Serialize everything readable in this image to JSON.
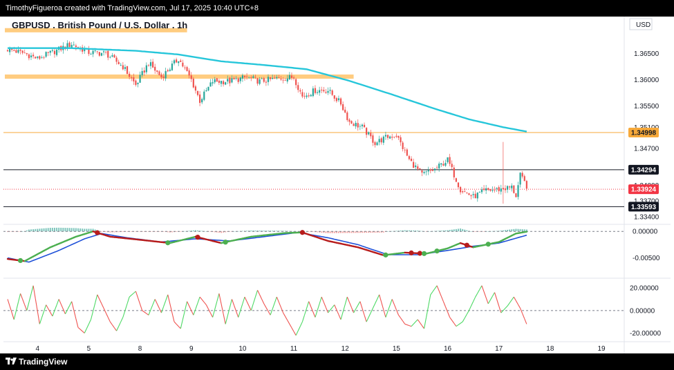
{
  "header": {
    "credit": "TimothyFigueroa created with TradingView.com, Jul 17, 2025 10:40 UTC+8"
  },
  "footer": {
    "brand": "TradingView"
  },
  "symbol": {
    "title": "GBPUSD . British Pound / U.S. Dollar . 1h"
  },
  "currency": "USD",
  "colors": {
    "up": "#26a69a",
    "down": "#ef5350",
    "ema": "#26c6da",
    "orange_line": "#f7a93a",
    "orange_zone": "#ffcc80",
    "sig_green": "#4caf50",
    "sig_red": "#b71c1c",
    "sig_blue": "#1e50d8",
    "rsi_up": "#4cd964",
    "rsi_down": "#ef5350",
    "last_price": "#f23645"
  },
  "chart_data": [
    {
      "type": "candlestick",
      "panel": "price",
      "ylim": [
        1.3327,
        1.3678
      ],
      "y_ticks": [
        "1.36500",
        "1.36000",
        "1.35500",
        "1.35100",
        "1.34700",
        "1.34300",
        "1.34000",
        "1.33700",
        "1.33400"
      ],
      "x_ticks": [
        "4",
        "5",
        "8",
        "9",
        "10",
        "11",
        "12",
        "15",
        "16",
        "17",
        "18",
        "19"
      ],
      "x_tick_index": [
        14,
        38,
        62,
        86,
        110,
        134,
        158,
        182,
        206,
        230,
        254,
        278
      ],
      "candles_count": 244,
      "close_anchors": [
        [
          0,
          1.3658
        ],
        [
          8,
          1.365
        ],
        [
          14,
          1.364
        ],
        [
          22,
          1.3654
        ],
        [
          30,
          1.3668
        ],
        [
          38,
          1.3652
        ],
        [
          46,
          1.365
        ],
        [
          54,
          1.3625
        ],
        [
          60,
          1.359
        ],
        [
          66,
          1.3632
        ],
        [
          72,
          1.3605
        ],
        [
          80,
          1.364
        ],
        [
          86,
          1.36
        ],
        [
          90,
          1.356
        ],
        [
          96,
          1.3597
        ],
        [
          104,
          1.3597
        ],
        [
          112,
          1.3605
        ],
        [
          118,
          1.3597
        ],
        [
          126,
          1.3602
        ],
        [
          134,
          1.3605
        ],
        [
          138,
          1.3568
        ],
        [
          144,
          1.358
        ],
        [
          150,
          1.358
        ],
        [
          156,
          1.3555
        ],
        [
          160,
          1.352
        ],
        [
          166,
          1.351
        ],
        [
          172,
          1.348
        ],
        [
          178,
          1.3492
        ],
        [
          182,
          1.3495
        ],
        [
          188,
          1.3448
        ],
        [
          194,
          1.342
        ],
        [
          200,
          1.343
        ],
        [
          206,
          1.3448
        ],
        [
          212,
          1.3392
        ],
        [
          218,
          1.3378
        ],
        [
          224,
          1.339
        ],
        [
          230,
          1.3392
        ],
        [
          236,
          1.3396
        ],
        [
          238,
          1.338
        ],
        [
          240,
          1.3418
        ],
        [
          244,
          1.3392
        ]
      ],
      "ema_anchors": [
        [
          0,
          1.366
        ],
        [
          30,
          1.366
        ],
        [
          60,
          1.3655
        ],
        [
          80,
          1.3648
        ],
        [
          100,
          1.3635
        ],
        [
          120,
          1.3628
        ],
        [
          140,
          1.362
        ],
        [
          160,
          1.3598
        ],
        [
          180,
          1.3572
        ],
        [
          200,
          1.3545
        ],
        [
          216,
          1.3525
        ],
        [
          232,
          1.351
        ],
        [
          244,
          1.3501
        ]
      ],
      "wick_spikes": [
        [
          232,
          1.3482,
          1.3365
        ]
      ],
      "levels": [
        {
          "price": 1.34998,
          "label": "1.34998",
          "style": "orange"
        },
        {
          "price": 1.34294,
          "label": "1.34294",
          "style": "black"
        },
        {
          "price": 1.33924,
          "label": "1.33924",
          "style": "last"
        },
        {
          "price": 1.33593,
          "label": "1.33593",
          "style": "black"
        }
      ],
      "zones": [
        {
          "price_top": 1.3698,
          "price_bottom": 1.369,
          "x_start": 0,
          "x_end": 84
        },
        {
          "price_top": 1.361,
          "price_bottom": 1.3602,
          "x_start": 0,
          "x_end": 162
        }
      ]
    },
    {
      "type": "oscillator",
      "panel": "momentum",
      "ylim": [
        -0.0087,
        0.0012
      ],
      "y_ticks": [
        "0.00000",
        "-0.00500"
      ],
      "fast_anchors": [
        [
          0,
          -0.0052
        ],
        [
          8,
          -0.0056
        ],
        [
          20,
          -0.003
        ],
        [
          32,
          -0.001
        ],
        [
          40,
          0.0
        ],
        [
          48,
          -0.001
        ],
        [
          60,
          -0.0015
        ],
        [
          76,
          -0.0022
        ],
        [
          88,
          -0.001
        ],
        [
          100,
          -0.0022
        ],
        [
          114,
          -0.001
        ],
        [
          130,
          -0.0003
        ],
        [
          138,
          -0.0002
        ],
        [
          150,
          -0.0018
        ],
        [
          164,
          -0.003
        ],
        [
          176,
          -0.0045
        ],
        [
          186,
          -0.004
        ],
        [
          196,
          -0.0042
        ],
        [
          206,
          -0.0032
        ],
        [
          212,
          -0.0022
        ],
        [
          218,
          -0.003
        ],
        [
          230,
          -0.002
        ],
        [
          238,
          -0.0004
        ],
        [
          244,
          0.0
        ]
      ],
      "slow_anchors": [
        [
          0,
          -0.005
        ],
        [
          10,
          -0.0058
        ],
        [
          24,
          -0.0036
        ],
        [
          36,
          -0.0014
        ],
        [
          44,
          -0.0004
        ],
        [
          56,
          -0.0012
        ],
        [
          72,
          -0.002
        ],
        [
          88,
          -0.0014
        ],
        [
          104,
          -0.0018
        ],
        [
          120,
          -0.001
        ],
        [
          136,
          -0.0002
        ],
        [
          150,
          -0.0012
        ],
        [
          164,
          -0.0025
        ],
        [
          178,
          -0.0044
        ],
        [
          192,
          -0.0044
        ],
        [
          206,
          -0.0036
        ],
        [
          218,
          -0.0028
        ],
        [
          230,
          -0.0022
        ],
        [
          244,
          -0.0006
        ]
      ],
      "markers": [
        {
          "i": 6,
          "kind": "green"
        },
        {
          "i": 42,
          "kind": "red"
        },
        {
          "i": 75,
          "kind": "green"
        },
        {
          "i": 89,
          "kind": "red"
        },
        {
          "i": 102,
          "kind": "green"
        },
        {
          "i": 138,
          "kind": "red"
        },
        {
          "i": 177,
          "kind": "green"
        },
        {
          "i": 189,
          "kind": "red"
        },
        {
          "i": 193,
          "kind": "red"
        },
        {
          "i": 195,
          "kind": "green"
        },
        {
          "i": 201,
          "kind": "green"
        },
        {
          "i": 215,
          "kind": "red"
        },
        {
          "i": 225,
          "kind": "green"
        }
      ]
    },
    {
      "type": "line",
      "panel": "rsi-like",
      "ylim": [
        -27,
        28
      ],
      "y_ticks": [
        "20.00000",
        "0.00000",
        "-20.00000"
      ],
      "y_tick_values": [
        20,
        0,
        -20
      ],
      "anchors": [
        [
          0,
          10
        ],
        [
          3,
          -8
        ],
        [
          6,
          15
        ],
        [
          9,
          0
        ],
        [
          12,
          22
        ],
        [
          15,
          -12
        ],
        [
          18,
          5
        ],
        [
          21,
          -5
        ],
        [
          24,
          10
        ],
        [
          27,
          -3
        ],
        [
          30,
          8
        ],
        [
          33,
          -15
        ],
        [
          36,
          -20
        ],
        [
          39,
          -8
        ],
        [
          42,
          14
        ],
        [
          45,
          2
        ],
        [
          48,
          -10
        ],
        [
          51,
          -18
        ],
        [
          54,
          -6
        ],
        [
          57,
          12
        ],
        [
          60,
          17
        ],
        [
          63,
          0
        ],
        [
          66,
          -4
        ],
        [
          69,
          10
        ],
        [
          72,
          -2
        ],
        [
          75,
          14
        ],
        [
          78,
          -10
        ],
        [
          81,
          -16
        ],
        [
          84,
          8
        ],
        [
          87,
          -4
        ],
        [
          90,
          12
        ],
        [
          93,
          5
        ],
        [
          96,
          -6
        ],
        [
          99,
          15
        ],
        [
          102,
          -12
        ],
        [
          105,
          10
        ],
        [
          108,
          -6
        ],
        [
          111,
          12
        ],
        [
          114,
          0
        ],
        [
          117,
          18
        ],
        [
          120,
          6
        ],
        [
          123,
          -4
        ],
        [
          126,
          12
        ],
        [
          129,
          -2
        ],
        [
          132,
          -12
        ],
        [
          135,
          -22
        ],
        [
          138,
          -10
        ],
        [
          141,
          8
        ],
        [
          144,
          -6
        ],
        [
          147,
          12
        ],
        [
          150,
          -2
        ],
        [
          153,
          5
        ],
        [
          156,
          -8
        ],
        [
          159,
          12
        ],
        [
          162,
          -2
        ],
        [
          165,
          8
        ],
        [
          168,
          -10
        ],
        [
          171,
          2
        ],
        [
          174,
          14
        ],
        [
          177,
          -6
        ],
        [
          180,
          10
        ],
        [
          183,
          -4
        ],
        [
          186,
          -12
        ],
        [
          189,
          -14
        ],
        [
          192,
          -8
        ],
        [
          195,
          -16
        ],
        [
          198,
          14
        ],
        [
          201,
          22
        ],
        [
          204,
          8
        ],
        [
          207,
          -6
        ],
        [
          210,
          -14
        ],
        [
          213,
          -10
        ],
        [
          216,
          0
        ],
        [
          219,
          12
        ],
        [
          222,
          22
        ],
        [
          225,
          6
        ],
        [
          228,
          16
        ],
        [
          231,
          -2
        ],
        [
          234,
          4
        ],
        [
          237,
          12
        ],
        [
          240,
          2
        ],
        [
          243,
          -12
        ],
        [
          244,
          -14
        ]
      ]
    }
  ]
}
